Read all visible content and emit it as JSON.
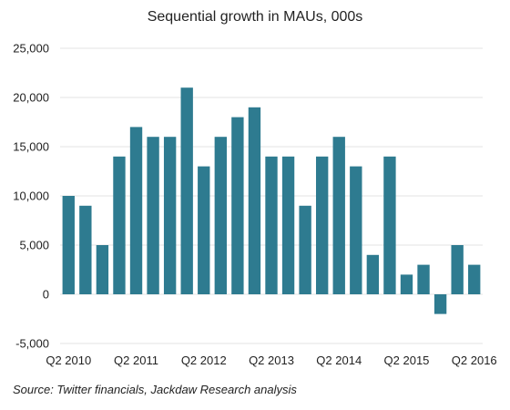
{
  "chart_data": {
    "type": "bar",
    "title": "Sequential growth in MAUs, 000s",
    "source": "Source: Twitter financials, Jackdaw Research analysis",
    "xlabel": "",
    "ylabel": "",
    "ylim": [
      -5000,
      25000
    ],
    "y_ticks": [
      -5000,
      0,
      5000,
      10000,
      15000,
      20000,
      25000
    ],
    "y_tick_labels": [
      "-5,000",
      "0",
      "5,000",
      "10,000",
      "15,000",
      "20,000",
      "25,000"
    ],
    "grid": true,
    "legend": "none",
    "bar_color": "#2e7b90",
    "categories": [
      "Q2 2010",
      "Q3 2010",
      "Q4 2010",
      "Q1 2011",
      "Q2 2011",
      "Q3 2011",
      "Q4 2011",
      "Q1 2012",
      "Q2 2012",
      "Q3 2012",
      "Q4 2012",
      "Q1 2013",
      "Q2 2013",
      "Q3 2013",
      "Q4 2013",
      "Q1 2014",
      "Q2 2014",
      "Q3 2014",
      "Q4 2014",
      "Q1 2015",
      "Q2 2015",
      "Q3 2015",
      "Q4 2015",
      "Q1 2016",
      "Q2 2016"
    ],
    "values": [
      10000,
      9000,
      5000,
      14000,
      17000,
      16000,
      16000,
      21000,
      13000,
      16000,
      18000,
      19000,
      14000,
      14000,
      9000,
      14000,
      16000,
      13000,
      4000,
      14000,
      2000,
      3000,
      -2000,
      5000,
      3000
    ],
    "x_tick_labels": [
      "Q2 2010",
      "Q2 2011",
      "Q2 2012",
      "Q2 2013",
      "Q2 2014",
      "Q2 2015",
      "Q2 2016"
    ]
  }
}
